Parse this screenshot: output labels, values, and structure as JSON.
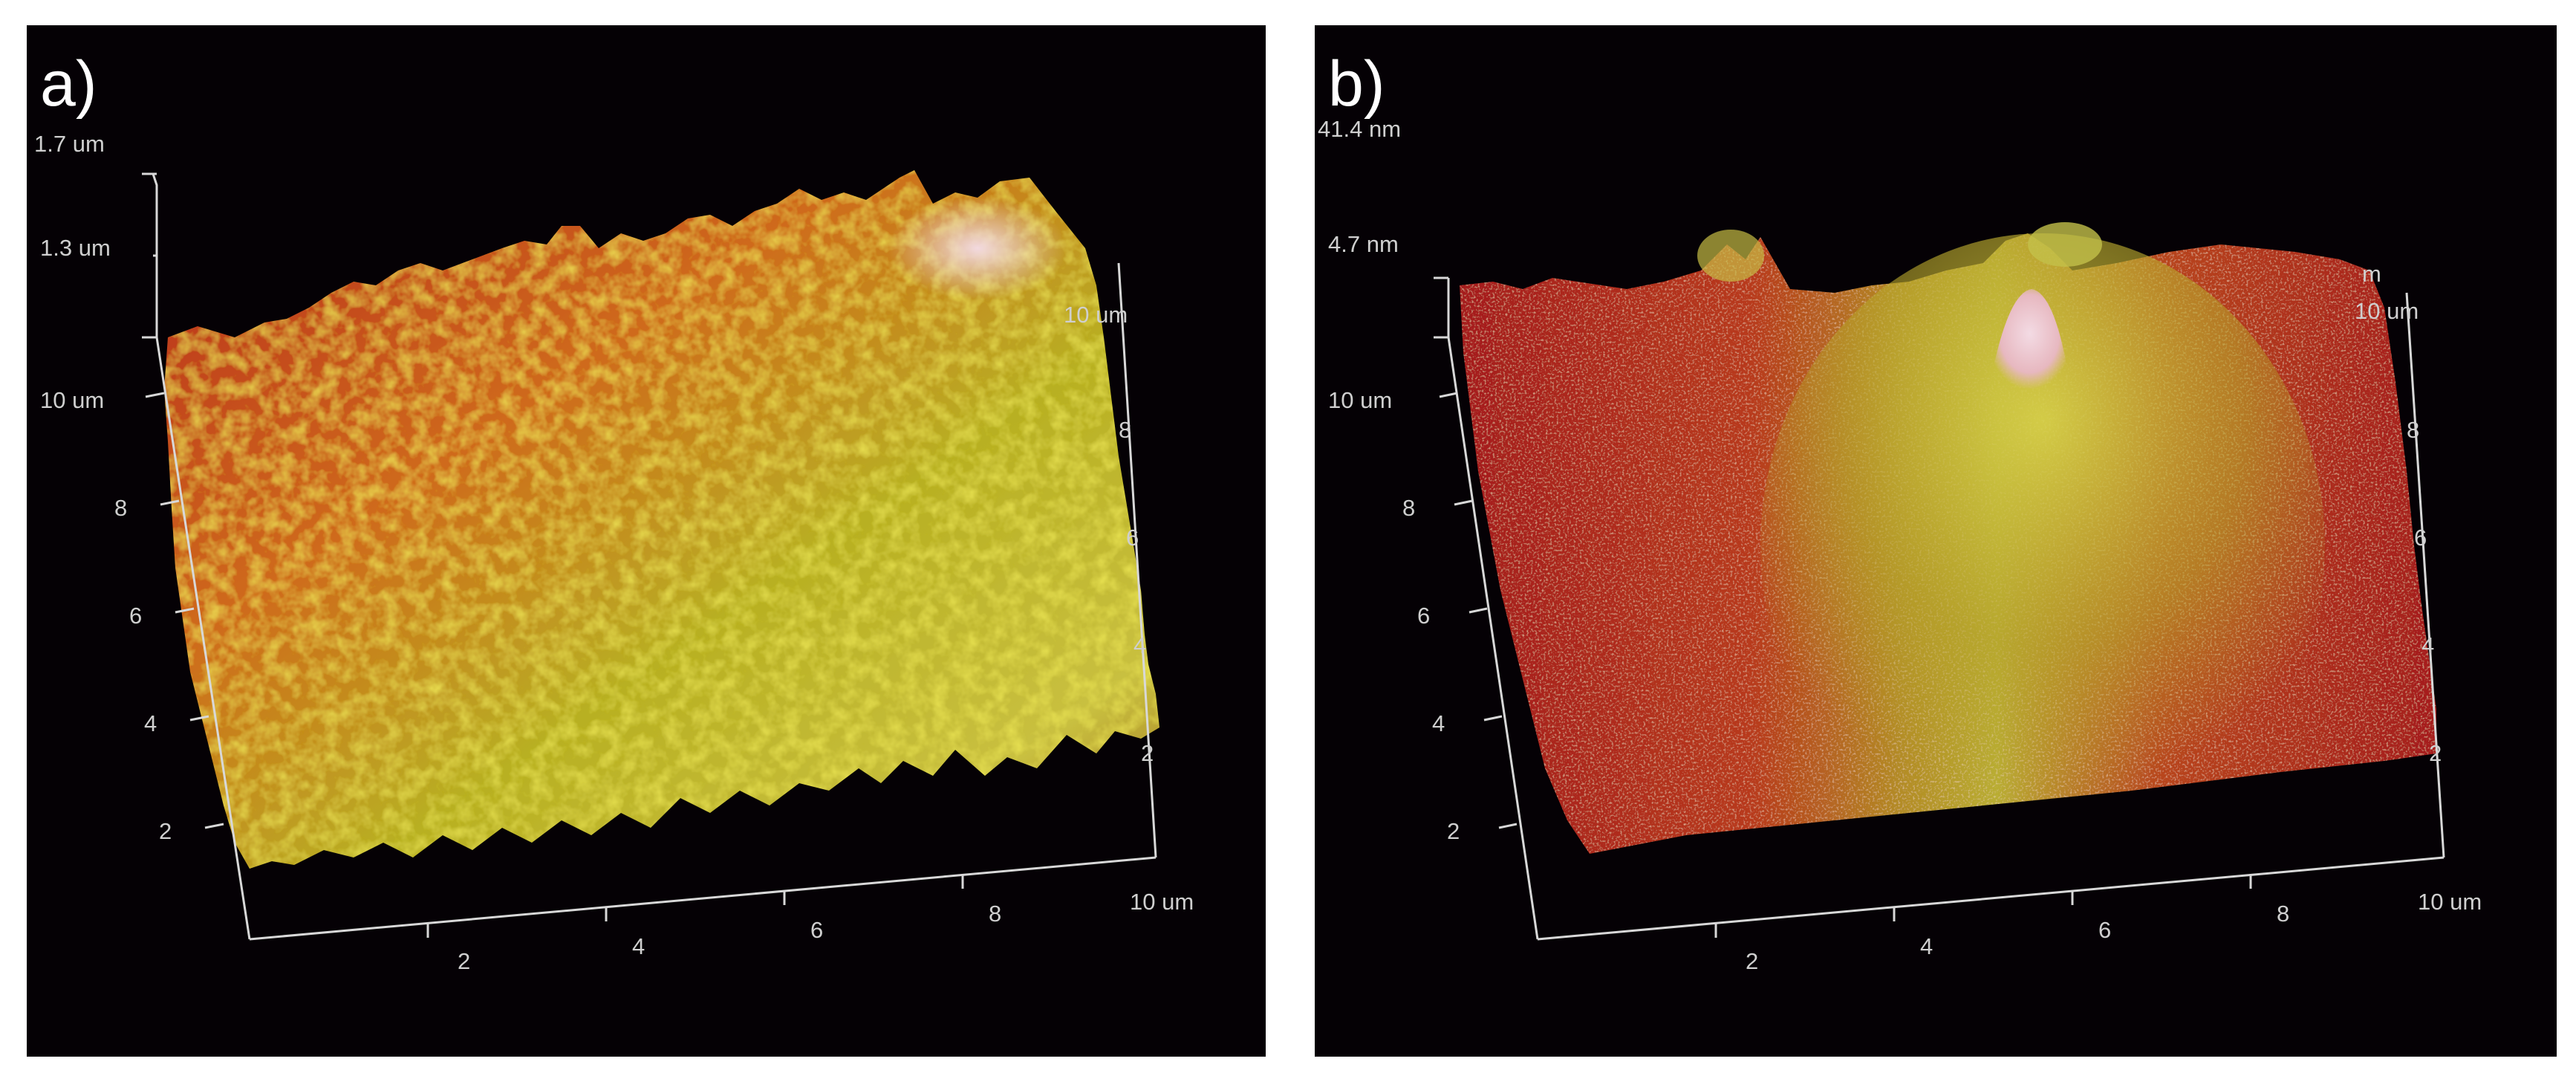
{
  "panels": [
    {
      "label": "a)",
      "z_ticks": [
        "1.7 um",
        "1.3 um"
      ],
      "y_ticks_left": [
        "10 um",
        "8",
        "6",
        "4",
        "2"
      ],
      "x_ticks": [
        "2",
        "4",
        "6",
        "8",
        "10 um"
      ],
      "y_ticks_right": [
        "10 um",
        "8",
        "6",
        "4",
        "2"
      ],
      "surface": "rough, many peaks"
    },
    {
      "label": "b)",
      "z_ticks": [
        "41.4 nm",
        "4.7 nm"
      ],
      "y_ticks_left": [
        "10 um",
        "8",
        "6",
        "4",
        "2"
      ],
      "x_ticks": [
        "2",
        "4",
        "6",
        "8",
        "10 um"
      ],
      "y_ticks_right": [
        "m",
        "10 um",
        "8",
        "6",
        "4",
        "2"
      ],
      "surface": "smooth with central peak"
    }
  ]
}
